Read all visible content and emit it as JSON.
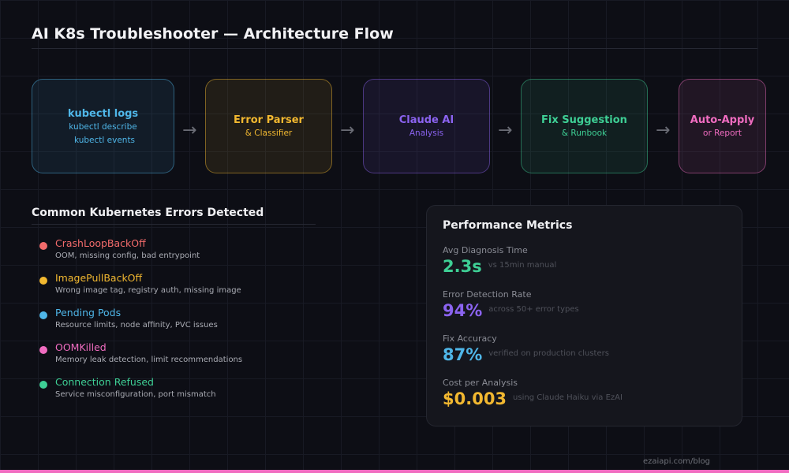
{
  "title": "AI K8s Troubleshooter — Architecture Flow",
  "flow": [
    {
      "title": "kubectl logs",
      "lines": [
        "kubectl describe",
        "kubectl events"
      ],
      "color": "#4fb6e8"
    },
    {
      "title": "Error Parser",
      "lines": [
        "& Classifier"
      ],
      "color": "#f2b830"
    },
    {
      "title": "Claude AI",
      "lines": [
        "Analysis"
      ],
      "color": "#8b63f0"
    },
    {
      "title": "Fix Suggestion",
      "lines": [
        "& Runbook"
      ],
      "color": "#3ecf95"
    },
    {
      "title": "Auto-Apply",
      "lines": [
        "or Report"
      ],
      "color": "#f06cc0"
    }
  ],
  "arrow": "→",
  "errors_section": {
    "title": "Common Kubernetes Errors Detected",
    "items": [
      {
        "name": "CrashLoopBackOff",
        "desc": "OOM, missing config, bad entrypoint",
        "color": "#f26b6b"
      },
      {
        "name": "ImagePullBackOff",
        "desc": "Wrong image tag, registry auth, missing image",
        "color": "#f2b830"
      },
      {
        "name": "Pending Pods",
        "desc": "Resource limits, node affinity, PVC issues",
        "color": "#4fb6e8"
      },
      {
        "name": "OOMKilled",
        "desc": "Memory leak detection, limit recommendations",
        "color": "#f06cc0"
      },
      {
        "name": "Connection Refused",
        "desc": "Service misconfiguration, port mismatch",
        "color": "#3ecf95"
      }
    ]
  },
  "metrics": {
    "title": "Performance Metrics",
    "items": [
      {
        "label": "Avg Diagnosis Time",
        "value": "2.3s",
        "caption": "vs 15min manual",
        "color": "#3ecf95"
      },
      {
        "label": "Error Detection Rate",
        "value": "94%",
        "caption": "across 50+ error types",
        "color": "#8b63f0"
      },
      {
        "label": "Fix Accuracy",
        "value": "87%",
        "caption": "verified on production clusters",
        "color": "#4fb6e8"
      },
      {
        "label": "Cost per Analysis",
        "value": "$0.003",
        "caption": "using Claude Haiku via EzAI",
        "color": "#f2b830"
      }
    ]
  },
  "footer": "ezaiapi.com/blog"
}
